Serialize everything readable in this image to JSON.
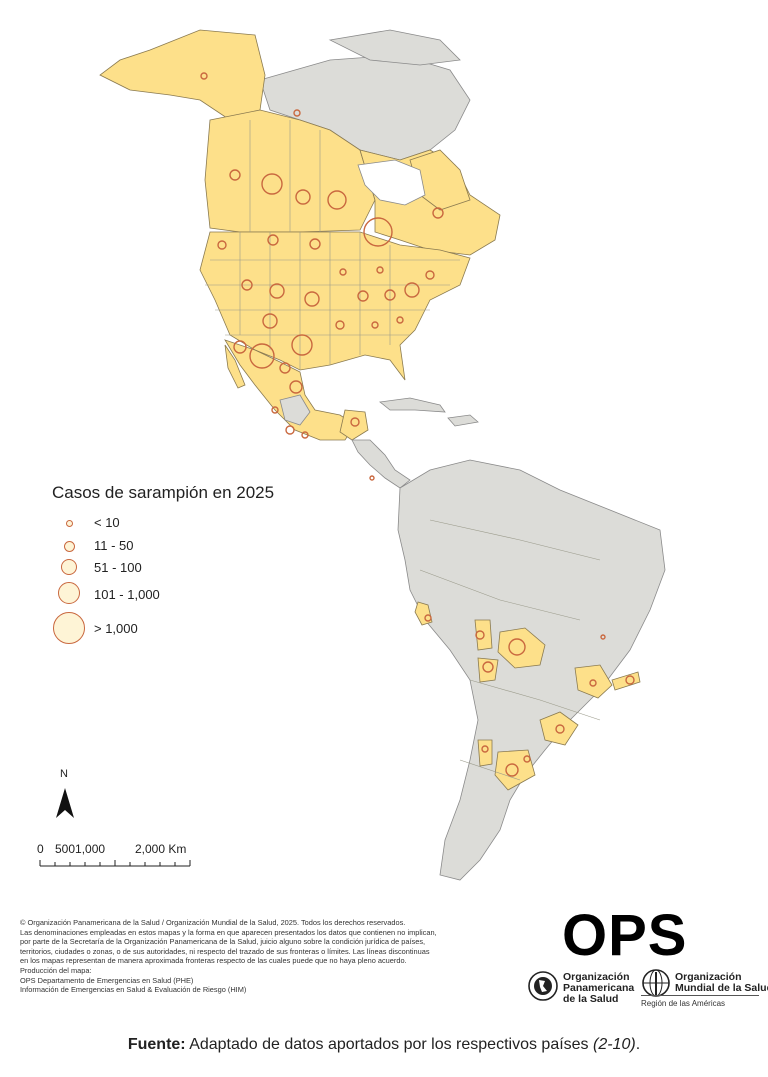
{
  "legend": {
    "title": "Casos de sarampión en 2025",
    "items": [
      {
        "label": "< 10",
        "level": 1
      },
      {
        "label": "11 - 50",
        "level": 2
      },
      {
        "label": "51 - 100",
        "level": 3
      },
      {
        "label": "101 - 1,000",
        "level": 4
      },
      {
        "label": "> 1,000",
        "level": 5
      }
    ]
  },
  "north_arrow": {
    "label": "N"
  },
  "scale_bar": {
    "labels": [
      "0",
      "5001,000",
      "2,000 Km"
    ]
  },
  "copyright_lines": [
    "© Organización Panamericana de la Salud / Organización Mundial de la Salud, 2025. Todos los derechos reservados.",
    "Las denominaciones empleadas en estos mapas y la forma en que aparecen presentados los datos que contienen no implican,",
    "por parte de la Secretaría de la Organización Panamericana de la Salud, juicio alguno sobre la condición jurídica de países,",
    "territorios, ciudades o zonas, o de sus autoridades, ni respecto del trazado de sus fronteras o límites.  Las líneas discontinuas",
    "en los mapas representan de manera aproximada fronteras respecto de las cuales puede que no haya pleno acuerdo.",
    "Producción del mapa:",
    "OPS Departamento de Emergencias en Salud (PHE)",
    "Información de Emergencias en Salud & Evaluación de Riesgo (HIM)"
  ],
  "logos": {
    "ops": "OPS",
    "paho": [
      "Organización",
      "Panamericana",
      "de la Salud"
    ],
    "who": [
      "Organización",
      "Mundial de la Salud"
    ],
    "region": "Región de las Américas"
  },
  "footer": {
    "label": "Fuente:",
    "text": " Adaptado de datos aportados por los respectivos países ",
    "ref": "(2-10)",
    "end": "."
  },
  "colors": {
    "affected": "#fde08a",
    "unaffected": "#dcdcd8",
    "circle": "#c9683f"
  }
}
